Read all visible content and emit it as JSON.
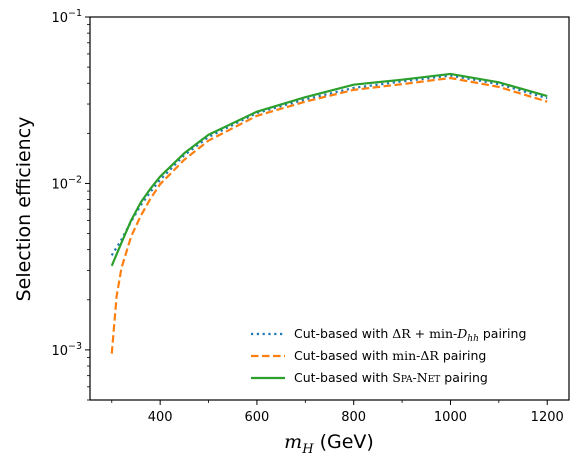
{
  "chart_data": {
    "type": "line",
    "xlabel": {
      "var": "m",
      "sub": "H",
      "unit": " (GeV)"
    },
    "ylabel": "Selection efficiency",
    "xlim": [
      255,
      1245
    ],
    "ylim": [
      0.0005,
      0.1
    ],
    "yscale": "log",
    "xticks": [
      400,
      600,
      800,
      1000,
      1200
    ],
    "yticks": [
      {
        "value": 0.001,
        "base": "10",
        "exp": "−3"
      },
      {
        "value": 0.01,
        "base": "10",
        "exp": "−2"
      },
      {
        "value": 0.1,
        "base": "10",
        "exp": "−1"
      }
    ],
    "grid": false,
    "legend_position": "bottom-right",
    "series": [
      {
        "name": "Cut-based with ΔR + min-D_hh pairing",
        "legend": {
          "pre": "Cut-based with ",
          "math1": "ΔR + min-",
          "math2": "D",
          "sub": "hh",
          "post": " pairing"
        },
        "color": "#1f77b4",
        "style": "dotted",
        "x": [
          300,
          320,
          340,
          360,
          380,
          400,
          450,
          500,
          600,
          700,
          800,
          900,
          1000,
          1100,
          1200
        ],
        "y": [
          0.0037,
          0.0046,
          0.0059,
          0.0074,
          0.0089,
          0.0105,
          0.0148,
          0.019,
          0.0265,
          0.032,
          0.0375,
          0.041,
          0.0445,
          0.0395,
          0.0325
        ]
      },
      {
        "name": "Cut-based with min-ΔR pairing",
        "legend": {
          "pre": "Cut-based with ",
          "math1": "min-ΔR",
          "post": " pairing"
        },
        "color": "#ff7f0e",
        "style": "dashed",
        "x": [
          300,
          310,
          320,
          340,
          360,
          380,
          400,
          450,
          500,
          600,
          700,
          800,
          900,
          1000,
          1100,
          1200
        ],
        "y": [
          0.00095,
          0.0021,
          0.0031,
          0.0048,
          0.0064,
          0.0081,
          0.0099,
          0.0139,
          0.0181,
          0.0255,
          0.031,
          0.0365,
          0.0395,
          0.043,
          0.038,
          0.031
        ]
      },
      {
        "name": "Cut-based with SPA-NET pairing",
        "legend": {
          "pre": "Cut-based with ",
          "sc": "Spa-Net",
          "post": " pairing"
        },
        "color": "#2ca02c",
        "style": "solid",
        "x": [
          300,
          320,
          340,
          360,
          380,
          400,
          450,
          500,
          600,
          700,
          800,
          900,
          1000,
          1100,
          1200
        ],
        "y": [
          0.0032,
          0.0044,
          0.006,
          0.0077,
          0.0093,
          0.011,
          0.0152,
          0.0196,
          0.027,
          0.033,
          0.0392,
          0.042,
          0.0455,
          0.0405,
          0.0335
        ]
      }
    ]
  }
}
